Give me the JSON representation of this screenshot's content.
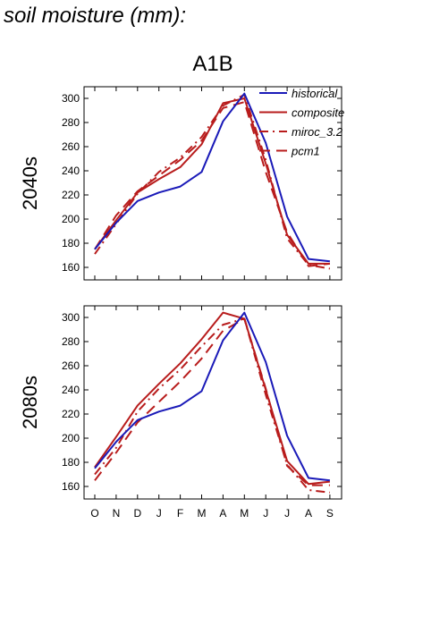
{
  "header": {
    "title": "soil moisture (mm):"
  },
  "scenario": "A1B",
  "colors": {
    "historical": "#1a1ab8",
    "model": "#b81c1c",
    "axis": "#000000"
  },
  "chart_data": {
    "type": "line",
    "x_categories": [
      "O",
      "N",
      "D",
      "J",
      "F",
      "M",
      "A",
      "M",
      "J",
      "J",
      "A",
      "S"
    ],
    "ylim": [
      150,
      310
    ],
    "yticks": [
      160,
      180,
      200,
      220,
      240,
      260,
      280,
      300
    ],
    "legend": {
      "placement": "top-right",
      "entries": [
        {
          "name": "historical",
          "style": "solid",
          "color": "#1a1ab8"
        },
        {
          "name": "composite",
          "style": "solid",
          "color": "#b81c1c"
        },
        {
          "name": "miroc_3.2",
          "style": "dashdot",
          "color": "#b81c1c"
        },
        {
          "name": "pcm1",
          "style": "dashed",
          "color": "#b81c1c"
        }
      ]
    },
    "panels": [
      {
        "label": "2040s",
        "series": [
          {
            "name": "historical",
            "values": [
              175,
              197,
              215,
              222,
              227,
              239,
              281,
              304,
              263,
              202,
              167,
              165
            ]
          },
          {
            "name": "composite",
            "values": [
              175,
              199,
              222,
              233,
              243,
              262,
              296,
              300,
              246,
              187,
              163,
              163
            ]
          },
          {
            "name": "miroc_3.2",
            "values": [
              171,
              196,
              221,
              239,
              251,
              268,
              294,
              303,
              249,
              184,
              162,
              159
            ]
          },
          {
            "name": "pcm1",
            "values": [
              175,
              203,
              223,
              236,
              249,
              265,
              292,
              297,
              239,
              189,
              161,
              163
            ]
          }
        ]
      },
      {
        "label": "2080s",
        "series": [
          {
            "name": "historical",
            "values": [
              175,
              197,
              215,
              222,
              227,
              239,
              281,
              304,
              263,
              202,
              167,
              165
            ]
          },
          {
            "name": "composite",
            "values": [
              176,
              201,
              227,
              245,
              262,
              282,
              304,
              299,
              240,
              181,
              162,
              164
            ]
          },
          {
            "name": "miroc_3.2",
            "values": [
              170,
              192,
              222,
              241,
              257,
              276,
              294,
              299,
              236,
              178,
              157,
              155
            ]
          },
          {
            "name": "pcm1",
            "values": [
              165,
              188,
              213,
              230,
              247,
              266,
              289,
              299,
              241,
              177,
              161,
              161
            ]
          }
        ]
      }
    ]
  }
}
